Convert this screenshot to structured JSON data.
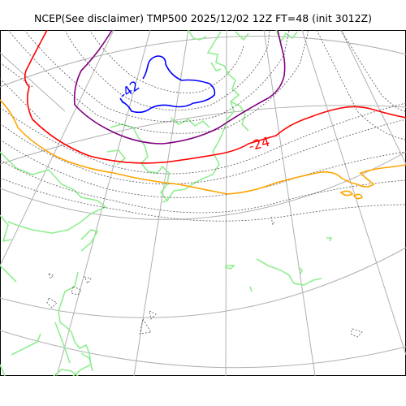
{
  "title": "NCEP(See disclaimer) TMP500 2025/12/02 12Z FT=48 (init 3012Z)",
  "contour_labels": [
    {
      "text": "-42",
      "color": "#0000ff"
    },
    {
      "text": "-24",
      "color": "#ff0000"
    }
  ],
  "colors": {
    "coastline": "#90ee90",
    "graticule": "#b0b0b0",
    "blue_contour": "#0000ff",
    "purple_contour": "#800080",
    "red_contour": "#ff0000",
    "orange_contour": "#ffa500",
    "dotted_contour": "#555555"
  }
}
